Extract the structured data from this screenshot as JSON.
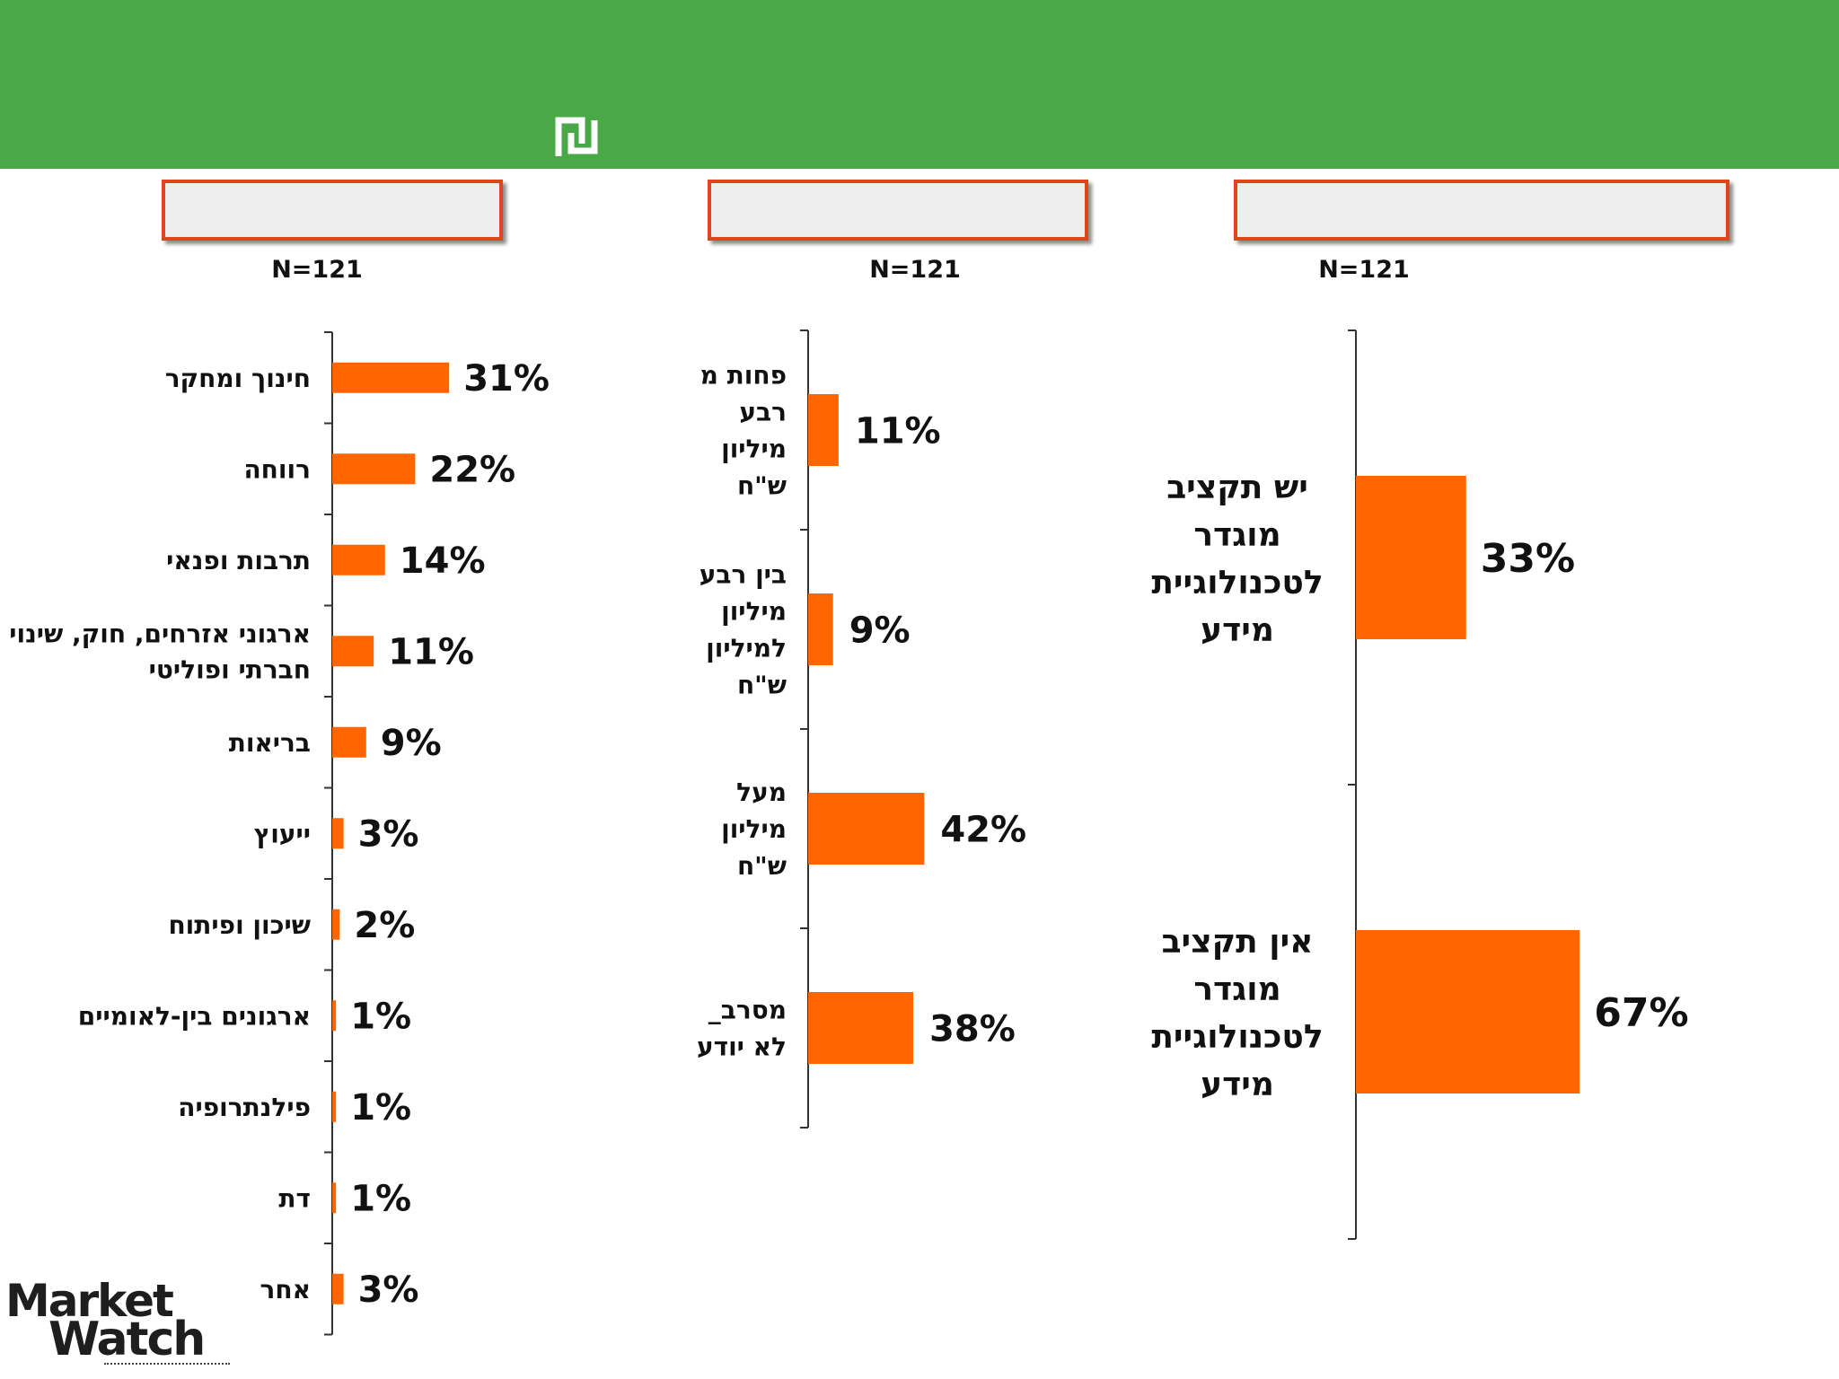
{
  "colors": {
    "header": "#4aa946",
    "bar": "#ff6600",
    "box_border": "#e0451b",
    "text": "#111111"
  },
  "header": {
    "icon": "shekel-icon"
  },
  "logo": {
    "text_line1": "Market",
    "text_line2": "Watch"
  },
  "chart_data": [
    {
      "type": "bar",
      "orientation": "horizontal",
      "sample_label": "N=121",
      "categories": [
        "חינוך ומחקר",
        "רווחה",
        "תרבות ופנאי",
        "ארגוני אזרחים, חוק, שינוי חברתי ופוליטי",
        "בריאות",
        "ייעוץ",
        "שיכון ופיתוח",
        "ארגונים בין-לאומיים",
        "פילנתרופיה",
        "דת",
        "אחר"
      ],
      "label_lines": [
        [
          "חינוך ומחקר"
        ],
        [
          "רווחה"
        ],
        [
          "תרבות ופנאי"
        ],
        [
          "ארגוני אזרחים, חוק, שינוי",
          "חברתי ופוליטי"
        ],
        [
          "בריאות"
        ],
        [
          "ייעוץ"
        ],
        [
          "שיכון ופיתוח"
        ],
        [
          "ארגונים בין-לאומיים"
        ],
        [
          "פילנתרופיה"
        ],
        [
          "דת"
        ],
        [
          "אחר"
        ]
      ],
      "values": [
        31,
        22,
        14,
        11,
        9,
        3,
        2,
        1,
        1,
        1,
        3
      ],
      "value_labels": [
        "31%",
        "22%",
        "14%",
        "11%",
        "9%",
        "3%",
        "2%",
        "1%",
        "1%",
        "1%",
        "3%"
      ],
      "xlim": [
        0,
        100
      ]
    },
    {
      "type": "bar",
      "orientation": "horizontal",
      "sample_label": "N=121",
      "categories": [
        "פחות מ רבע מיליון ש\"ח",
        "בין רבע מיליון למיליון ש\"ח",
        "מעל מיליון ש\"ח",
        "מסרב_ לא יודע"
      ],
      "label_lines": [
        [
          "פחות מ",
          "רבע",
          "מיליון",
          "ש\"ח"
        ],
        [
          "בין רבע",
          "מיליון",
          "למיליון",
          "ש\"ח"
        ],
        [
          "מעל",
          "מיליון",
          "ש\"ח"
        ],
        [
          "מסרב_",
          "לא יודע"
        ]
      ],
      "values": [
        11,
        9,
        42,
        38
      ],
      "value_labels": [
        "11%",
        "9%",
        "42%",
        "38%"
      ],
      "xlim": [
        0,
        100
      ]
    },
    {
      "type": "bar",
      "orientation": "horizontal",
      "sample_label": "N=121",
      "categories": [
        "יש תקציב מוגדר לטכנולוגיית מידע",
        "אין תקציב מוגדר לטכנולוגיית מידע"
      ],
      "label_lines": [
        [
          "יש תקציב",
          "מוגדר",
          "לטכנולוגיית",
          "מידע"
        ],
        [
          "אין תקציב",
          "מוגדר",
          "לטכנולוגיית",
          "מידע"
        ]
      ],
      "values": [
        33,
        67
      ],
      "value_labels": [
        "33%",
        "67%"
      ],
      "xlim": [
        0,
        100
      ]
    }
  ]
}
